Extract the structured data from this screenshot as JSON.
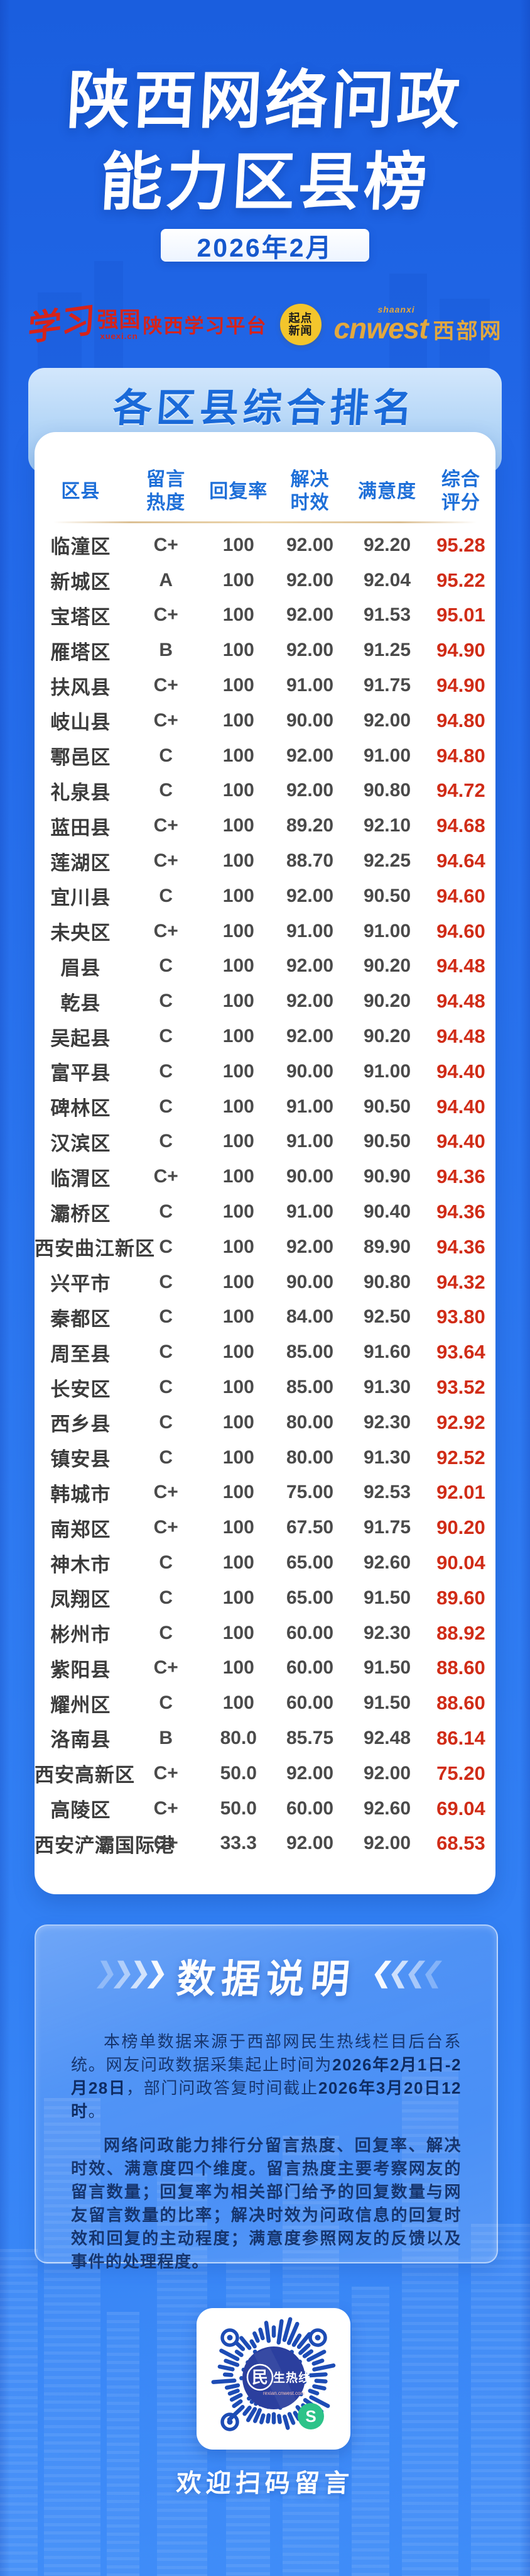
{
  "title": {
    "line1": "陕西网络问政",
    "line2": "能力区县榜",
    "date": "2026年2月"
  },
  "logos": {
    "xuexi_script": "学习",
    "xuexi_block": "强国",
    "xuexi_url": "xuexi.cn",
    "xuexi_platform": "陕西学习平台",
    "qidian_top": "起点",
    "qidian_bottom": "新闻",
    "cnwest_small": "shaanxi",
    "cnwest_main": "cnwest",
    "cnwest_suffix": "西部网"
  },
  "section_header": "各区县综合排名",
  "table": {
    "header_lines": [
      [
        "区县"
      ],
      [
        "留言",
        "热度"
      ],
      [
        "回复率"
      ],
      [
        "解决",
        "时效"
      ],
      [
        "满意度"
      ],
      [
        "综合",
        "评分"
      ]
    ]
  },
  "chart_data": {
    "type": "table",
    "title": "各区县综合排名",
    "columns": [
      "区县",
      "留言热度",
      "回复率",
      "解决时效",
      "满意度",
      "综合评分"
    ],
    "rows": [
      [
        "临潼区",
        "C+",
        "100",
        "92.00",
        "92.20",
        "95.28"
      ],
      [
        "新城区",
        "A",
        "100",
        "92.00",
        "92.04",
        "95.22"
      ],
      [
        "宝塔区",
        "C+",
        "100",
        "92.00",
        "91.53",
        "95.01"
      ],
      [
        "雁塔区",
        "B",
        "100",
        "92.00",
        "91.25",
        "94.90"
      ],
      [
        "扶风县",
        "C+",
        "100",
        "91.00",
        "91.75",
        "94.90"
      ],
      [
        "岐山县",
        "C+",
        "100",
        "90.00",
        "92.00",
        "94.80"
      ],
      [
        "鄠邑区",
        "C",
        "100",
        "92.00",
        "91.00",
        "94.80"
      ],
      [
        "礼泉县",
        "C",
        "100",
        "92.00",
        "90.80",
        "94.72"
      ],
      [
        "蓝田县",
        "C+",
        "100",
        "89.20",
        "92.10",
        "94.68"
      ],
      [
        "莲湖区",
        "C+",
        "100",
        "88.70",
        "92.25",
        "94.64"
      ],
      [
        "宜川县",
        "C",
        "100",
        "92.00",
        "90.50",
        "94.60"
      ],
      [
        "未央区",
        "C+",
        "100",
        "91.00",
        "91.00",
        "94.60"
      ],
      [
        "眉县",
        "C",
        "100",
        "92.00",
        "90.20",
        "94.48"
      ],
      [
        "乾县",
        "C",
        "100",
        "92.00",
        "90.20",
        "94.48"
      ],
      [
        "吴起县",
        "C",
        "100",
        "92.00",
        "90.20",
        "94.48"
      ],
      [
        "富平县",
        "C",
        "100",
        "90.00",
        "91.00",
        "94.40"
      ],
      [
        "碑林区",
        "C",
        "100",
        "91.00",
        "90.50",
        "94.40"
      ],
      [
        "汉滨区",
        "C",
        "100",
        "91.00",
        "90.50",
        "94.40"
      ],
      [
        "临渭区",
        "C+",
        "100",
        "90.00",
        "90.90",
        "94.36"
      ],
      [
        "灞桥区",
        "C",
        "100",
        "91.00",
        "90.40",
        "94.36"
      ],
      [
        "西安曲江新区",
        "C",
        "100",
        "92.00",
        "89.90",
        "94.36"
      ],
      [
        "兴平市",
        "C",
        "100",
        "90.00",
        "90.80",
        "94.32"
      ],
      [
        "秦都区",
        "C",
        "100",
        "84.00",
        "92.50",
        "93.80"
      ],
      [
        "周至县",
        "C",
        "100",
        "85.00",
        "91.60",
        "93.64"
      ],
      [
        "长安区",
        "C",
        "100",
        "85.00",
        "91.30",
        "93.52"
      ],
      [
        "西乡县",
        "C",
        "100",
        "80.00",
        "92.30",
        "92.92"
      ],
      [
        "镇安县",
        "C",
        "100",
        "80.00",
        "91.30",
        "92.52"
      ],
      [
        "韩城市",
        "C+",
        "100",
        "75.00",
        "92.53",
        "92.01"
      ],
      [
        "南郑区",
        "C+",
        "100",
        "67.50",
        "91.75",
        "90.20"
      ],
      [
        "神木市",
        "C",
        "100",
        "65.00",
        "92.60",
        "90.04"
      ],
      [
        "凤翔区",
        "C",
        "100",
        "65.00",
        "91.50",
        "89.60"
      ],
      [
        "彬州市",
        "C",
        "100",
        "60.00",
        "92.30",
        "88.92"
      ],
      [
        "紫阳县",
        "C+",
        "100",
        "60.00",
        "91.50",
        "88.60"
      ],
      [
        "耀州区",
        "C",
        "100",
        "60.00",
        "91.50",
        "88.60"
      ],
      [
        "洛南县",
        "B",
        "80.0",
        "85.75",
        "92.48",
        "86.14"
      ],
      [
        "西安高新区",
        "C+",
        "50.0",
        "92.00",
        "92.00",
        "75.20"
      ],
      [
        "高陵区",
        "C+",
        "50.0",
        "60.00",
        "92.60",
        "69.04"
      ],
      [
        "西安浐灞国际港",
        "C+",
        "33.3",
        "92.00",
        "92.00",
        "68.53"
      ]
    ]
  },
  "notes": {
    "header": "数据说明",
    "p1_pre": "本榜单数据来源于西部网民生热线栏目后台系统。网友问政数据采集起止时间为",
    "p1_bold1": "2026年2月1日-2月28日",
    "p1_mid": "，部门问政答复时间截止",
    "p1_bold2": "2026年3月20日12时",
    "p1_end": "。",
    "p2": "网络问政能力排行分留言热度、回复率、解决时效、满意度四个维度。留言热度主要考察网友的留言数量；回复率为相关部门给予的回复数量与网友留言数量的比率；解决时效为问政信息的回复时效和回复的主动程度；满意度参照网友的反馈以及事件的处理程度。"
  },
  "qr": {
    "badge_char": "民",
    "badge_text": "生热线",
    "badge_url": "rexian.cnwest.com",
    "caption": "欢迎扫码留言"
  },
  "icons": {
    "chevron_right": "❯",
    "chevron_left": "❮"
  },
  "colors": {
    "accent_blue": "#1e6fd8",
    "score_red": "#d02c17",
    "gold_divider": "#dcc094",
    "banner_blue": "#b4d6f7",
    "navy_text": "#16356e",
    "qr_blue": "#1d4cb5",
    "mini_program_green": "#2dc389"
  }
}
